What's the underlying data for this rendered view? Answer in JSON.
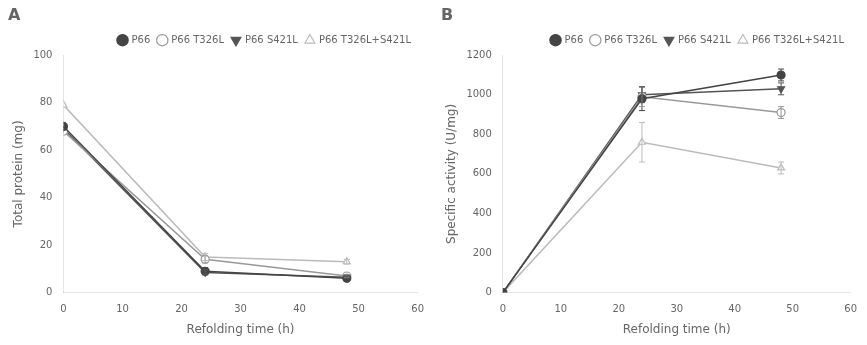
{
  "chart_data": [
    {
      "type": "line",
      "title": "A",
      "x_label": "Refolding time (h)",
      "y_label": "Total protein (mg)",
      "x": [
        0,
        24,
        48
      ],
      "xlim": [
        0,
        60
      ],
      "ylim": [
        0,
        100
      ],
      "xticks": [
        0,
        10,
        20,
        30,
        40,
        50,
        60
      ],
      "yticks": [
        0,
        20,
        40,
        60,
        80,
        100
      ],
      "grid": false,
      "legend": "upper right",
      "series": [
        {
          "name": "P66",
          "color": "#444444",
          "marker": "circle",
          "line_style": "solid",
          "values": [
            70,
            9,
            6
          ],
          "errors": [
            0,
            1.5,
            0.5
          ]
        },
        {
          "name": "P66 T326L",
          "color": "#999999",
          "marker": "circle-open",
          "line_style": "solid",
          "values": [
            68,
            14,
            7
          ],
          "errors": [
            0,
            1.5,
            0.5
          ]
        },
        {
          "name": "P66 S421L",
          "color": "#555555",
          "marker": "triangle-down",
          "line_style": "solid",
          "values": [
            69,
            8.5,
            6.5
          ],
          "errors": [
            0,
            1.0,
            0.5
          ]
        },
        {
          "name": "P66 T326L+S421L",
          "color": "#bbbbbb",
          "marker": "triangle-up-open",
          "line_style": "solid",
          "values": [
            79,
            15,
            13
          ],
          "errors": [
            0,
            1.5,
            1.0
          ]
        }
      ]
    },
    {
      "type": "line",
      "title": "B",
      "x_label": "Refolding time (h)",
      "y_label": "Specific activity (U/mg)",
      "x": [
        0,
        24,
        48
      ],
      "xlim": [
        0,
        60
      ],
      "ylim": [
        0,
        1200
      ],
      "xticks": [
        0,
        10,
        20,
        30,
        40,
        50,
        60
      ],
      "yticks": [
        0,
        200,
        400,
        600,
        800,
        1000,
        1200
      ],
      "grid": false,
      "legend": "upper right",
      "series": [
        {
          "name": "P66",
          "color": "#444444",
          "marker": "circle",
          "line_style": "solid",
          "values": [
            0,
            980,
            1100
          ],
          "errors": [
            0,
            60,
            30
          ]
        },
        {
          "name": "P66 T326L",
          "color": "#999999",
          "marker": "circle-open",
          "line_style": "solid",
          "values": [
            0,
            990,
            910
          ],
          "errors": [
            0,
            50,
            30
          ]
        },
        {
          "name": "P66 S421L",
          "color": "#555555",
          "marker": "triangle-down",
          "line_style": "solid",
          "values": [
            0,
            1000,
            1030
          ],
          "errors": [
            0,
            40,
            30
          ]
        },
        {
          "name": "P66 T326L+S421L",
          "color": "#bbbbbb",
          "marker": "triangle-up-open",
          "line_style": "solid",
          "values": [
            0,
            760,
            630
          ],
          "errors": [
            0,
            100,
            30
          ]
        }
      ]
    }
  ]
}
